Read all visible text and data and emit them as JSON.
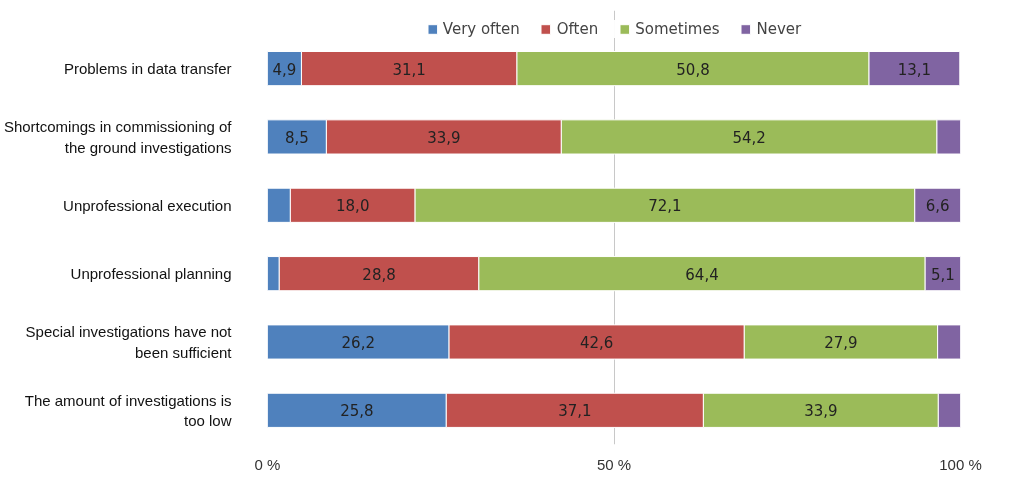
{
  "chart_data": {
    "type": "bar",
    "orientation": "horizontal",
    "stacked": true,
    "categories": [
      "Problems in data transfer",
      "Shortcomings in commissioning of the ground investigations",
      "Unprofessional execution",
      "Unprofessional planning",
      "Special investigations have not been sufficient",
      "The amount of investigations is too low"
    ],
    "series": [
      {
        "name": "Very often",
        "color": "#4f81bd",
        "values": [
          4.9,
          8.5,
          3.3,
          1.7,
          26.2,
          25.8
        ],
        "value_labels": [
          "4,9",
          "8,5",
          null,
          null,
          "26,2",
          "25,8"
        ]
      },
      {
        "name": "Often",
        "color": "#c0504d",
        "values": [
          31.1,
          33.9,
          18.0,
          28.8,
          42.6,
          37.1
        ],
        "value_labels": [
          "31,1",
          "33,9",
          "18,0",
          "28,8",
          "42,6",
          "37,1"
        ]
      },
      {
        "name": "Sometimes",
        "color": "#9bbb59",
        "values": [
          50.8,
          54.2,
          72.1,
          64.4,
          27.9,
          33.9
        ],
        "value_labels": [
          "50,8",
          "54,2",
          "72,1",
          "64,4",
          "27,9",
          "33,9"
        ]
      },
      {
        "name": "Never",
        "color": "#8064a2",
        "values": [
          13.1,
          3.4,
          6.6,
          5.1,
          3.3,
          3.2
        ],
        "value_labels": [
          "13,1",
          null,
          "6,6",
          "5,1",
          null,
          null
        ]
      }
    ],
    "xlim": [
      0,
      100
    ],
    "xticks": [
      {
        "value": 0,
        "label": "0 %"
      },
      {
        "value": 50,
        "label": "50 %"
      },
      {
        "value": 100,
        "label": "100 %"
      }
    ],
    "grid": "x",
    "legend": "top"
  }
}
